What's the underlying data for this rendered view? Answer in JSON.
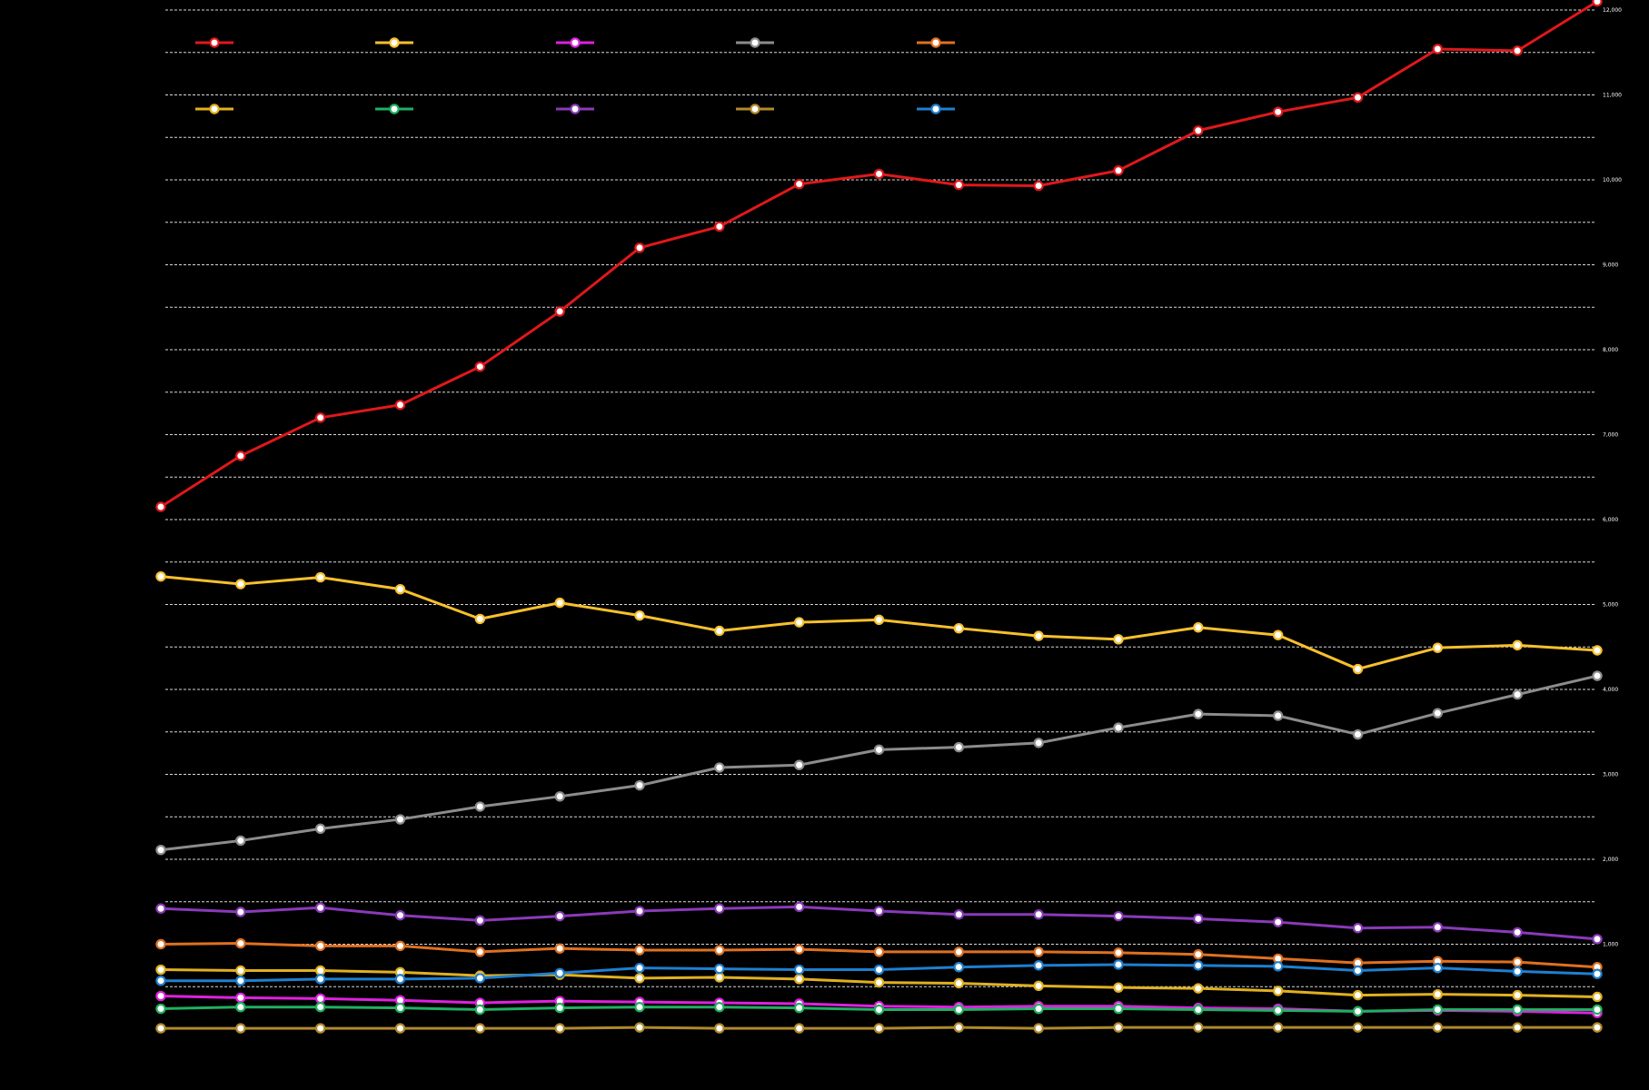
{
  "chart_data": {
    "type": "line",
    "x_count": 19,
    "ylim": [
      0,
      12000
    ],
    "yticks": [
      1000,
      2000,
      3000,
      4000,
      5000,
      6000,
      7000,
      8000,
      9000,
      10000,
      11000,
      12000
    ],
    "ytick_labels": [
      "1,000",
      "2,000",
      "3,000",
      "4,000",
      "5,000",
      "6,000",
      "7,000",
      "8,000",
      "9,000",
      "10,000",
      "11,000",
      "12,000"
    ],
    "grid": true,
    "legend_position": "top-left",
    "series": [
      {
        "color": "#e0181b",
        "values": [
          6150,
          6750,
          7200,
          7350,
          7800,
          8450,
          9200,
          9450,
          9950,
          10070,
          9940,
          9930,
          10110,
          10580,
          10800,
          10970,
          11540,
          11520,
          12100
        ]
      },
      {
        "color": "#f7c02c",
        "values": [
          5330,
          5240,
          5320,
          5180,
          4830,
          5020,
          4870,
          4690,
          4790,
          4820,
          4720,
          4630,
          4590,
          4730,
          4640,
          4240,
          4490,
          4520,
          4460
        ]
      },
      {
        "color": "#e020e0",
        "values": [
          390,
          370,
          360,
          340,
          310,
          330,
          320,
          310,
          300,
          270,
          260,
          270,
          270,
          250,
          240,
          210,
          220,
          210,
          190
        ]
      },
      {
        "color": "#8c8c8c",
        "values": [
          2110,
          2220,
          2360,
          2470,
          2620,
          2740,
          2870,
          3080,
          3110,
          3290,
          3320,
          3370,
          3550,
          3710,
          3690,
          3470,
          3720,
          3940,
          4160
        ]
      },
      {
        "color": "#e07020",
        "values": [
          1000,
          1010,
          980,
          980,
          910,
          950,
          930,
          930,
          940,
          910,
          910,
          910,
          900,
          880,
          830,
          780,
          800,
          790,
          730
        ]
      },
      {
        "color": "#e0b020",
        "values": [
          700,
          690,
          690,
          670,
          630,
          640,
          600,
          610,
          590,
          550,
          540,
          510,
          490,
          480,
          450,
          400,
          410,
          400,
          380
        ]
      },
      {
        "color": "#20b060",
        "values": [
          240,
          260,
          260,
          250,
          230,
          250,
          260,
          260,
          250,
          230,
          230,
          240,
          240,
          230,
          220,
          210,
          230,
          230,
          230
        ]
      },
      {
        "color": "#8a3ab9",
        "values": [
          1420,
          1380,
          1430,
          1340,
          1280,
          1330,
          1390,
          1420,
          1440,
          1390,
          1350,
          1350,
          1330,
          1300,
          1260,
          1190,
          1200,
          1140,
          1060
        ]
      },
      {
        "color": "#b08a2a",
        "values": [
          10,
          10,
          10,
          10,
          10,
          10,
          20,
          10,
          10,
          10,
          20,
          10,
          20,
          20,
          20,
          20,
          20,
          20,
          20
        ]
      },
      {
        "color": "#1e7fd0",
        "values": [
          570,
          570,
          590,
          590,
          600,
          660,
          720,
          710,
          700,
          700,
          730,
          750,
          760,
          750,
          740,
          690,
          720,
          680,
          650
        ]
      }
    ]
  }
}
